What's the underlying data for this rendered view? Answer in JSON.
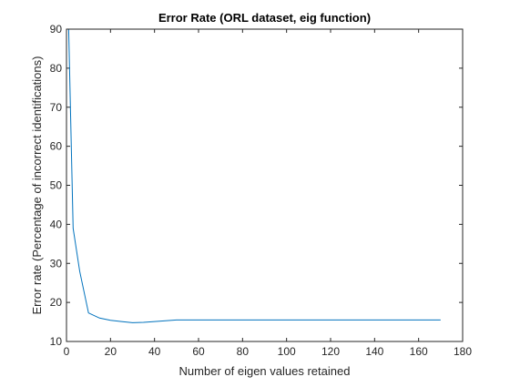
{
  "chart_data": {
    "type": "line",
    "title": "Error Rate (ORL dataset, eig function)",
    "xlabel": "Number of eigen values retained",
    "ylabel": "Error rate (Percentage of incorrect identifications)",
    "xlim": [
      0,
      180
    ],
    "ylim": [
      10,
      90
    ],
    "xticks": [
      "0",
      "20",
      "40",
      "60",
      "80",
      "100",
      "120",
      "140",
      "160",
      "180"
    ],
    "yticks": [
      "10",
      "20",
      "30",
      "40",
      "50",
      "60",
      "70",
      "80",
      "90"
    ],
    "grid": false,
    "line_color": "#0072BD",
    "series": [
      {
        "x": [
          1,
          3,
          6,
          10,
          15,
          20,
          25,
          30,
          35,
          40,
          45,
          50,
          60,
          80,
          100,
          120,
          140,
          160,
          170
        ],
        "y": [
          90,
          39,
          28,
          17.3,
          16,
          15.4,
          15.1,
          14.8,
          14.9,
          15.1,
          15.3,
          15.5,
          15.5,
          15.5,
          15.5,
          15.5,
          15.5,
          15.5,
          15.5
        ]
      }
    ]
  }
}
